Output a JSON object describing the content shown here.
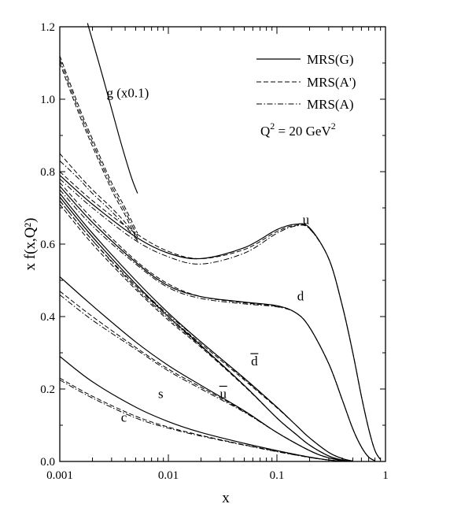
{
  "chart_data": {
    "type": "line",
    "title": "",
    "xlabel": "x",
    "ylabel": "x f(x,Q²)",
    "x_scale": "log",
    "xlim": [
      0.001,
      1
    ],
    "ylim": [
      0,
      1.2
    ],
    "x_ticks": [
      {
        "value": 0.001,
        "label": "0.001"
      },
      {
        "value": 0.01,
        "label": "0.01"
      },
      {
        "value": 0.1,
        "label": "0.1"
      },
      {
        "value": 1,
        "label": "1"
      }
    ],
    "y_ticks": [
      {
        "value": 0.0,
        "label": "0.0"
      },
      {
        "value": 0.2,
        "label": "0.2"
      },
      {
        "value": 0.4,
        "label": "0.4"
      },
      {
        "value": 0.6,
        "label": "0.6"
      },
      {
        "value": 0.8,
        "label": "0.8"
      },
      {
        "value": 1.0,
        "label": "1.0"
      },
      {
        "value": 1.2,
        "label": "1.2"
      }
    ],
    "grid": false,
    "legend_position": "top-right",
    "legend": [
      {
        "label": "MRS(G)",
        "style": "solid"
      },
      {
        "label": "MRS(A')",
        "style": "dashed"
      },
      {
        "label": "MRS(A)",
        "style": "dashdot"
      }
    ],
    "annotation": {
      "q": "Q",
      "q_exp": "2",
      "mid": " = 20 GeV",
      "unit_exp": "2"
    },
    "curve_labels": [
      {
        "id": "u",
        "text": "u",
        "x": 0.185,
        "y": 0.655
      },
      {
        "id": "d",
        "text": "d",
        "x": 0.165,
        "y": 0.445
      },
      {
        "id": "dbar",
        "text": "d",
        "x": 0.062,
        "y": 0.265
      },
      {
        "id": "ubar",
        "text": "u",
        "x": 0.032,
        "y": 0.175
      },
      {
        "id": "s",
        "text": "s",
        "x": 0.0085,
        "y": 0.175
      },
      {
        "id": "c",
        "text": "c",
        "x": 0.0039,
        "y": 0.11
      },
      {
        "id": "g",
        "text": "g (x0.1)",
        "x": 0.0027,
        "y": 1.005
      }
    ],
    "series": [
      {
        "name": "g (x0.1)",
        "style": "solid",
        "x": [
          0.0018,
          0.0025,
          0.0035,
          0.0045,
          0.0052
        ],
        "y": [
          1.21,
          1.06,
          0.9,
          0.79,
          0.74
        ]
      },
      {
        "name": "g (x0.1)",
        "style": "dashed",
        "x": [
          0.001,
          0.0015,
          0.002,
          0.003,
          0.004,
          0.0052
        ],
        "y": [
          1.12,
          0.98,
          0.89,
          0.77,
          0.7,
          0.63
        ]
      },
      {
        "name": "g (x0.1)",
        "style": "dashed",
        "x": [
          0.001,
          0.0015,
          0.002,
          0.003,
          0.004,
          0.0052
        ],
        "y": [
          1.1,
          0.96,
          0.87,
          0.75,
          0.68,
          0.61
        ]
      },
      {
        "name": "g (x0.1)",
        "style": "dashdot",
        "x": [
          0.001,
          0.0015,
          0.002,
          0.003,
          0.004,
          0.0052
        ],
        "y": [
          1.11,
          0.97,
          0.88,
          0.76,
          0.69,
          0.62
        ]
      },
      {
        "name": "g (x0.1)",
        "style": "dashed",
        "x": [
          0.001,
          0.0015,
          0.002,
          0.003,
          0.004,
          0.0052
        ],
        "y": [
          0.85,
          0.79,
          0.75,
          0.7,
          0.66,
          0.62
        ]
      },
      {
        "name": "g (x0.1)",
        "style": "dashdot",
        "x": [
          0.001,
          0.0015,
          0.002,
          0.003,
          0.004,
          0.0052
        ],
        "y": [
          0.83,
          0.78,
          0.74,
          0.69,
          0.65,
          0.61
        ]
      },
      {
        "name": "u",
        "style": "solid",
        "x": [
          0.001,
          0.002,
          0.005,
          0.01,
          0.02,
          0.05,
          0.1,
          0.15,
          0.2,
          0.3,
          0.4,
          0.5,
          0.6,
          0.7,
          0.8,
          0.9
        ],
        "y": [
          0.79,
          0.71,
          0.62,
          0.575,
          0.56,
          0.59,
          0.64,
          0.655,
          0.645,
          0.56,
          0.43,
          0.3,
          0.18,
          0.09,
          0.03,
          0.005
        ]
      },
      {
        "name": "u",
        "style": "dashed",
        "x": [
          0.001,
          0.002,
          0.005,
          0.01,
          0.02,
          0.05,
          0.1,
          0.15,
          0.2,
          0.3,
          0.4,
          0.5,
          0.6,
          0.7,
          0.8,
          0.9
        ],
        "y": [
          0.8,
          0.72,
          0.63,
          0.58,
          0.56,
          0.585,
          0.635,
          0.652,
          0.643,
          0.56,
          0.43,
          0.3,
          0.18,
          0.09,
          0.03,
          0.005
        ]
      },
      {
        "name": "u",
        "style": "dashdot",
        "x": [
          0.001,
          0.002,
          0.005,
          0.01,
          0.02,
          0.05,
          0.1,
          0.15,
          0.2,
          0.3,
          0.4,
          0.5,
          0.6,
          0.7,
          0.8,
          0.9
        ],
        "y": [
          0.78,
          0.7,
          0.61,
          0.565,
          0.545,
          0.575,
          0.63,
          0.65,
          0.642,
          0.56,
          0.43,
          0.3,
          0.18,
          0.09,
          0.03,
          0.005
        ]
      },
      {
        "name": "d",
        "style": "solid",
        "x": [
          0.001,
          0.002,
          0.005,
          0.01,
          0.02,
          0.05,
          0.1,
          0.15,
          0.2,
          0.3,
          0.4,
          0.5,
          0.6,
          0.7,
          0.8
        ],
        "y": [
          0.76,
          0.66,
          0.55,
          0.485,
          0.455,
          0.44,
          0.43,
          0.41,
          0.37,
          0.27,
          0.17,
          0.09,
          0.04,
          0.012,
          0.002
        ]
      },
      {
        "name": "d",
        "style": "dashed",
        "x": [
          0.001,
          0.002,
          0.005,
          0.01,
          0.02,
          0.05,
          0.1,
          0.15,
          0.2,
          0.3,
          0.4,
          0.5,
          0.6,
          0.7,
          0.8
        ],
        "y": [
          0.77,
          0.67,
          0.555,
          0.49,
          0.455,
          0.438,
          0.428,
          0.41,
          0.37,
          0.27,
          0.17,
          0.09,
          0.04,
          0.012,
          0.002
        ]
      },
      {
        "name": "d",
        "style": "dashdot",
        "x": [
          0.001,
          0.002,
          0.005,
          0.01,
          0.02,
          0.05,
          0.1,
          0.15,
          0.2,
          0.3,
          0.4,
          0.5,
          0.6,
          0.7,
          0.8
        ],
        "y": [
          0.75,
          0.65,
          0.545,
          0.48,
          0.45,
          0.435,
          0.427,
          0.41,
          0.37,
          0.27,
          0.17,
          0.09,
          0.04,
          0.012,
          0.002
        ]
      },
      {
        "name": "d̄",
        "style": "solid",
        "x": [
          0.001,
          0.002,
          0.005,
          0.01,
          0.02,
          0.05,
          0.1,
          0.15,
          0.2,
          0.3,
          0.4,
          0.5
        ],
        "y": [
          0.74,
          0.63,
          0.5,
          0.41,
          0.33,
          0.23,
          0.15,
          0.1,
          0.065,
          0.025,
          0.008,
          0.001
        ]
      },
      {
        "name": "d̄",
        "style": "dashed",
        "x": [
          0.001,
          0.002,
          0.005,
          0.01,
          0.02,
          0.05,
          0.1,
          0.15,
          0.2,
          0.3,
          0.4,
          0.5
        ],
        "y": [
          0.72,
          0.61,
          0.485,
          0.4,
          0.325,
          0.225,
          0.148,
          0.1,
          0.065,
          0.025,
          0.008,
          0.001
        ]
      },
      {
        "name": "d̄",
        "style": "dashdot",
        "x": [
          0.001,
          0.002,
          0.005,
          0.01,
          0.02,
          0.05,
          0.1,
          0.15,
          0.2,
          0.3,
          0.4,
          0.5
        ],
        "y": [
          0.73,
          0.62,
          0.49,
          0.405,
          0.33,
          0.228,
          0.15,
          0.1,
          0.065,
          0.025,
          0.008,
          0.001
        ]
      },
      {
        "name": "ū",
        "style": "solid",
        "x": [
          0.001,
          0.002,
          0.005,
          0.01,
          0.02,
          0.05,
          0.1,
          0.15,
          0.2,
          0.3,
          0.4,
          0.5
        ],
        "y": [
          0.73,
          0.62,
          0.49,
          0.4,
          0.32,
          0.21,
          0.12,
          0.075,
          0.045,
          0.015,
          0.004,
          0.001
        ]
      },
      {
        "name": "ū",
        "style": "dashed",
        "x": [
          0.001,
          0.002,
          0.005,
          0.01,
          0.02,
          0.05,
          0.1,
          0.15,
          0.2,
          0.3,
          0.4,
          0.5
        ],
        "y": [
          0.71,
          0.6,
          0.475,
          0.39,
          0.315,
          0.208,
          0.12,
          0.075,
          0.045,
          0.015,
          0.004,
          0.001
        ]
      },
      {
        "name": "ū",
        "style": "dashdot",
        "x": [
          0.001,
          0.002,
          0.005,
          0.01,
          0.02,
          0.05,
          0.1,
          0.15,
          0.2,
          0.3,
          0.4,
          0.5
        ],
        "y": [
          0.72,
          0.61,
          0.48,
          0.395,
          0.318,
          0.21,
          0.12,
          0.075,
          0.045,
          0.015,
          0.004,
          0.001
        ]
      },
      {
        "name": "s",
        "style": "solid",
        "x": [
          0.001,
          0.002,
          0.005,
          0.01,
          0.02,
          0.05,
          0.1,
          0.2,
          0.3,
          0.45
        ],
        "y": [
          0.51,
          0.43,
          0.33,
          0.265,
          0.21,
          0.14,
          0.08,
          0.03,
          0.01,
          0.001
        ]
      },
      {
        "name": "s",
        "style": "dashed",
        "x": [
          0.001,
          0.002,
          0.005,
          0.01,
          0.02,
          0.05,
          0.1,
          0.2,
          0.3,
          0.45
        ],
        "y": [
          0.47,
          0.4,
          0.315,
          0.255,
          0.205,
          0.138,
          0.08,
          0.03,
          0.01,
          0.001
        ]
      },
      {
        "name": "s",
        "style": "dashdot",
        "x": [
          0.001,
          0.002,
          0.005,
          0.01,
          0.02,
          0.05,
          0.1,
          0.2,
          0.3,
          0.45
        ],
        "y": [
          0.46,
          0.39,
          0.31,
          0.25,
          0.2,
          0.136,
          0.08,
          0.03,
          0.01,
          0.001
        ]
      },
      {
        "name": "c",
        "style": "solid",
        "x": [
          0.001,
          0.002,
          0.005,
          0.01,
          0.02,
          0.05,
          0.1,
          0.2,
          0.3,
          0.4
        ],
        "y": [
          0.29,
          0.22,
          0.15,
          0.11,
          0.08,
          0.05,
          0.03,
          0.012,
          0.004,
          0.001
        ]
      },
      {
        "name": "c",
        "style": "dashed",
        "x": [
          0.001,
          0.002,
          0.005,
          0.01,
          0.02,
          0.05,
          0.1,
          0.2,
          0.3,
          0.4
        ],
        "y": [
          0.23,
          0.18,
          0.125,
          0.095,
          0.072,
          0.046,
          0.028,
          0.011,
          0.004,
          0.001
        ]
      },
      {
        "name": "c",
        "style": "dashdot",
        "x": [
          0.001,
          0.002,
          0.005,
          0.01,
          0.02,
          0.05,
          0.1,
          0.2,
          0.3,
          0.4
        ],
        "y": [
          0.225,
          0.175,
          0.12,
          0.092,
          0.07,
          0.045,
          0.027,
          0.011,
          0.004,
          0.001
        ]
      }
    ]
  }
}
